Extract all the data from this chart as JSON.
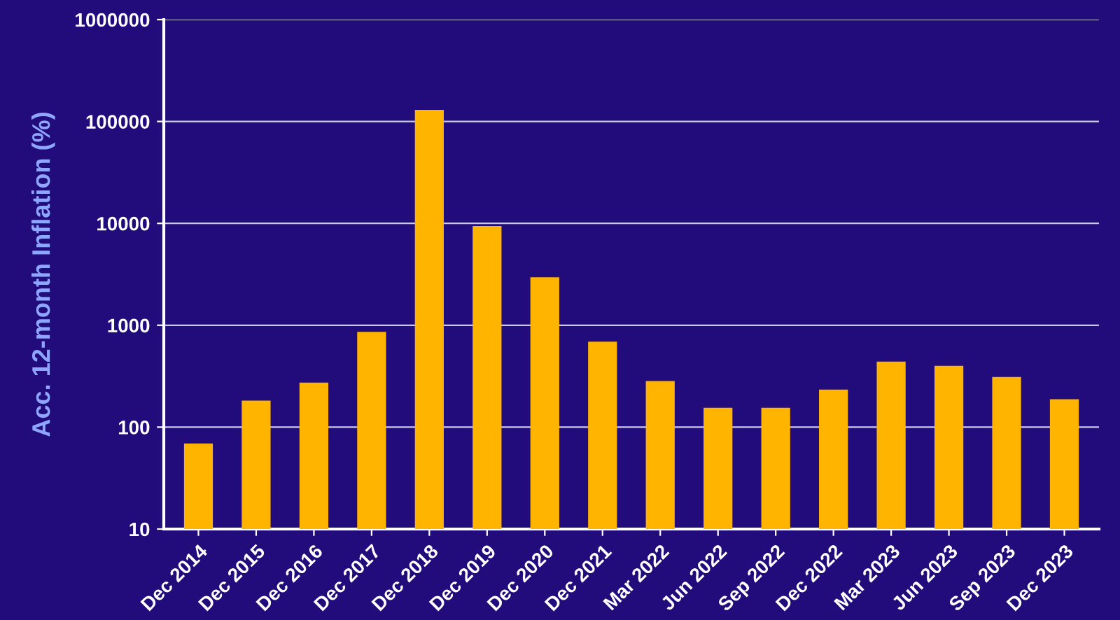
{
  "chart_data": {
    "type": "bar",
    "ylabel": "Acc. 12-month Inflation (%)",
    "categories": [
      "Dec 2014",
      "Dec 2015",
      "Dec 2016",
      "Dec 2017",
      "Dec 2018",
      "Dec 2019",
      "Dec 2020",
      "Dec 2021",
      "Mar 2022",
      "Jun 2022",
      "Sep 2022",
      "Dec 2022",
      "Mar 2023",
      "Jun 2023",
      "Sep 2023",
      "Dec 2023"
    ],
    "values": [
      69,
      182,
      274,
      860,
      130000,
      9400,
      2960,
      690,
      284,
      155,
      155,
      234,
      440,
      400,
      310,
      188
    ],
    "color": "#ffb500",
    "log": "y",
    "ylim": [
      10,
      1000000
    ],
    "yticks": [
      10,
      100,
      1000,
      10000,
      100000,
      1000000
    ],
    "grid": "y"
  }
}
